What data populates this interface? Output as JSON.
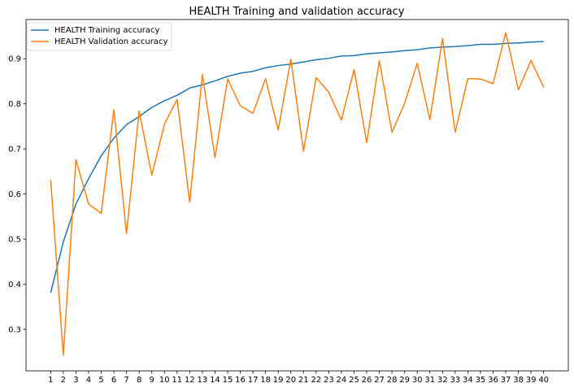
{
  "chart_data": {
    "type": "line",
    "title": "HEALTH Training and validation accuracy",
    "xlabel": "",
    "ylabel": "",
    "x": [
      1,
      2,
      3,
      4,
      5,
      6,
      7,
      8,
      9,
      10,
      11,
      12,
      13,
      14,
      15,
      16,
      17,
      18,
      19,
      20,
      21,
      22,
      23,
      24,
      25,
      26,
      27,
      28,
      29,
      30,
      31,
      32,
      33,
      34,
      35,
      36,
      37,
      38,
      39,
      40
    ],
    "xticks": [
      "1",
      "2",
      "3",
      "4",
      "5",
      "6",
      "7",
      "8",
      "9",
      "10",
      "11",
      "12",
      "13",
      "14",
      "15",
      "16",
      "17",
      "18",
      "19",
      "20",
      "21",
      "22",
      "23",
      "24",
      "25",
      "26",
      "27",
      "28",
      "29",
      "30",
      "31",
      "32",
      "33",
      "34",
      "35",
      "36",
      "37",
      "38",
      "39",
      "40"
    ],
    "yticks": [
      "0.3",
      "0.4",
      "0.5",
      "0.6",
      "0.7",
      "0.8",
      "0.9"
    ],
    "ytick_values": [
      0.3,
      0.4,
      0.5,
      0.6,
      0.7,
      0.8,
      0.9
    ],
    "xlim": [
      -0.95,
      41.95
    ],
    "ylim": [
      0.208,
      0.987
    ],
    "grid": false,
    "legend_position": "top-left",
    "series": [
      {
        "name": "HEALTH Training accuracy",
        "color": "#1f77b4",
        "values": [
          0.381,
          0.494,
          0.578,
          0.634,
          0.685,
          0.724,
          0.754,
          0.772,
          0.792,
          0.807,
          0.819,
          0.835,
          0.842,
          0.851,
          0.861,
          0.868,
          0.872,
          0.88,
          0.885,
          0.888,
          0.893,
          0.898,
          0.901,
          0.906,
          0.907,
          0.911,
          0.913,
          0.915,
          0.918,
          0.92,
          0.924,
          0.926,
          0.927,
          0.929,
          0.932,
          0.932,
          0.934,
          0.935,
          0.937,
          0.938
        ]
      },
      {
        "name": "HEALTH Validation accuracy",
        "color": "#ff7f0e",
        "values": [
          0.631,
          0.243,
          0.676,
          0.578,
          0.557,
          0.787,
          0.512,
          0.784,
          0.642,
          0.755,
          0.81,
          0.582,
          0.865,
          0.681,
          0.855,
          0.796,
          0.779,
          0.856,
          0.742,
          0.899,
          0.695,
          0.858,
          0.826,
          0.764,
          0.876,
          0.714,
          0.896,
          0.737,
          0.801,
          0.89,
          0.765,
          0.945,
          0.737,
          0.856,
          0.855,
          0.845,
          0.958,
          0.831,
          0.896,
          0.837
        ]
      }
    ]
  }
}
